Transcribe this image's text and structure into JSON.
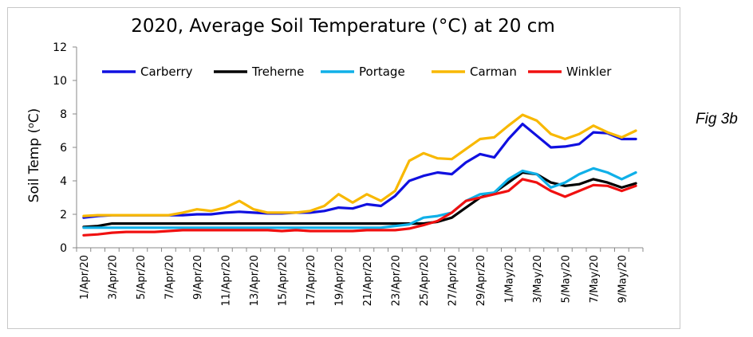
{
  "figure_label": "Fig 3b",
  "chart_data": {
    "type": "line",
    "title": "2020, Average Soil Temperature (°C) at 20 cm",
    "ylabel_parts": {
      "prefix": "Soil Temp (",
      "sup": "o",
      "suffix": "C)"
    },
    "xlabel": "",
    "ylim": [
      0,
      12
    ],
    "yticks": [
      0,
      2,
      4,
      6,
      8,
      10,
      12
    ],
    "grid": false,
    "legend_position": "top",
    "x": [
      "1/Apr/20",
      "2/Apr/20",
      "3/Apr/20",
      "4/Apr/20",
      "5/Apr/20",
      "6/Apr/20",
      "7/Apr/20",
      "8/Apr/20",
      "9/Apr/20",
      "10/Apr/20",
      "11/Apr/20",
      "12/Apr/20",
      "13/Apr/20",
      "14/Apr/20",
      "15/Apr/20",
      "16/Apr/20",
      "17/Apr/20",
      "18/Apr/20",
      "19/Apr/20",
      "20/Apr/20",
      "21/Apr/20",
      "22/Apr/20",
      "23/Apr/20",
      "24/Apr/20",
      "25/Apr/20",
      "26/Apr/20",
      "27/Apr/20",
      "28/Apr/20",
      "29/Apr/20",
      "30/Apr/20",
      "1/May/20",
      "2/May/20",
      "3/May/20",
      "4/May/20",
      "5/May/20",
      "6/May/20",
      "7/May/20",
      "8/May/20",
      "9/May/20",
      "10/May/20"
    ],
    "x_tick_labels": [
      "1/Apr/20",
      "3/Apr/20",
      "5/Apr/20",
      "7/Apr/20",
      "9/Apr/20",
      "11/Apr/20",
      "13/Apr/20",
      "15/Apr/20",
      "17/Apr/20",
      "19/Apr/20",
      "21/Apr/20",
      "23/Apr/20",
      "25/Apr/20",
      "27/Apr/20",
      "29/Apr/20",
      "1/May/20",
      "3/May/20",
      "5/May/20",
      "7/May/20",
      "9/May/20"
    ],
    "series": [
      {
        "name": "Carberry",
        "color": "#1010e0",
        "values": [
          1.8,
          1.9,
          1.95,
          1.95,
          1.95,
          1.95,
          1.95,
          1.95,
          2.0,
          2.0,
          2.1,
          2.15,
          2.1,
          2.05,
          2.05,
          2.1,
          2.1,
          2.2,
          2.4,
          2.35,
          2.6,
          2.5,
          3.1,
          4.0,
          4.3,
          4.5,
          4.4,
          5.1,
          5.6,
          5.4,
          6.5,
          7.4,
          6.7,
          6.0,
          6.05,
          6.2,
          6.9,
          6.85,
          6.5,
          6.5
        ]
      },
      {
        "name": "Treherne",
        "color": "#000000",
        "values": [
          1.25,
          1.3,
          1.45,
          1.45,
          1.45,
          1.45,
          1.45,
          1.45,
          1.45,
          1.45,
          1.45,
          1.45,
          1.45,
          1.45,
          1.45,
          1.45,
          1.45,
          1.45,
          1.45,
          1.45,
          1.45,
          1.45,
          1.45,
          1.45,
          1.45,
          1.55,
          1.8,
          2.4,
          3.0,
          3.3,
          3.9,
          4.5,
          4.4,
          3.9,
          3.7,
          3.8,
          4.1,
          3.9,
          3.6,
          3.85
        ]
      },
      {
        "name": "Portage",
        "color": "#10b0e8",
        "values": [
          1.2,
          1.2,
          1.2,
          1.2,
          1.2,
          1.2,
          1.2,
          1.2,
          1.2,
          1.2,
          1.2,
          1.2,
          1.2,
          1.2,
          1.2,
          1.2,
          1.2,
          1.2,
          1.2,
          1.2,
          1.2,
          1.2,
          1.3,
          1.4,
          1.8,
          1.9,
          2.1,
          2.8,
          3.2,
          3.3,
          4.1,
          4.6,
          4.4,
          3.6,
          3.9,
          4.4,
          4.75,
          4.5,
          4.1,
          4.5
        ]
      },
      {
        "name": "Carman",
        "color": "#f8b800",
        "values": [
          1.9,
          1.95,
          1.95,
          1.95,
          1.95,
          1.95,
          1.95,
          2.1,
          2.3,
          2.2,
          2.4,
          2.8,
          2.3,
          2.1,
          2.1,
          2.1,
          2.2,
          2.5,
          3.2,
          2.7,
          3.2,
          2.8,
          3.4,
          5.2,
          5.65,
          5.35,
          5.3,
          5.9,
          6.5,
          6.6,
          7.3,
          7.95,
          7.6,
          6.8,
          6.5,
          6.8,
          7.3,
          6.9,
          6.6,
          7.0
        ]
      },
      {
        "name": "Winkler",
        "color": "#f01010",
        "values": [
          0.75,
          0.8,
          0.9,
          0.95,
          0.95,
          0.95,
          1.0,
          1.05,
          1.05,
          1.05,
          1.05,
          1.05,
          1.05,
          1.05,
          1.0,
          1.05,
          1.0,
          1.0,
          1.0,
          1.0,
          1.05,
          1.05,
          1.05,
          1.15,
          1.35,
          1.6,
          2.1,
          2.8,
          3.0,
          3.2,
          3.4,
          4.1,
          3.9,
          3.4,
          3.05,
          3.4,
          3.75,
          3.7,
          3.4,
          3.7
        ]
      }
    ]
  }
}
